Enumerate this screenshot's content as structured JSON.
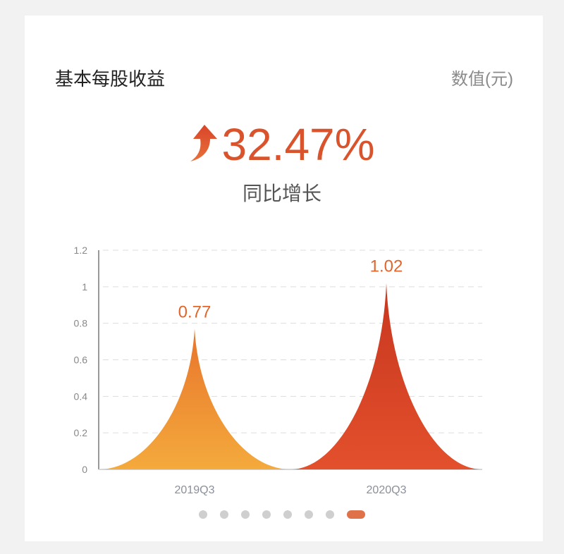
{
  "header": {
    "title": "基本每股收益",
    "unit": "数值(元)"
  },
  "summary": {
    "value": "32.47%",
    "label": "同比增长",
    "icon": "arrow-up-icon"
  },
  "chart_data": {
    "type": "area",
    "categories": [
      "2019Q3",
      "2020Q3"
    ],
    "values": [
      0.77,
      1.02
    ],
    "data_labels": [
      "0.77",
      "1.02"
    ],
    "yticks": [
      "0",
      "0.2",
      "0.4",
      "0.6",
      "0.8",
      "1",
      "1.2"
    ],
    "ylim": [
      0,
      1.2
    ],
    "grid": true,
    "colors": [
      "#f0a03a",
      "#d9452a"
    ]
  },
  "pager": {
    "count": 8,
    "active": 7
  }
}
